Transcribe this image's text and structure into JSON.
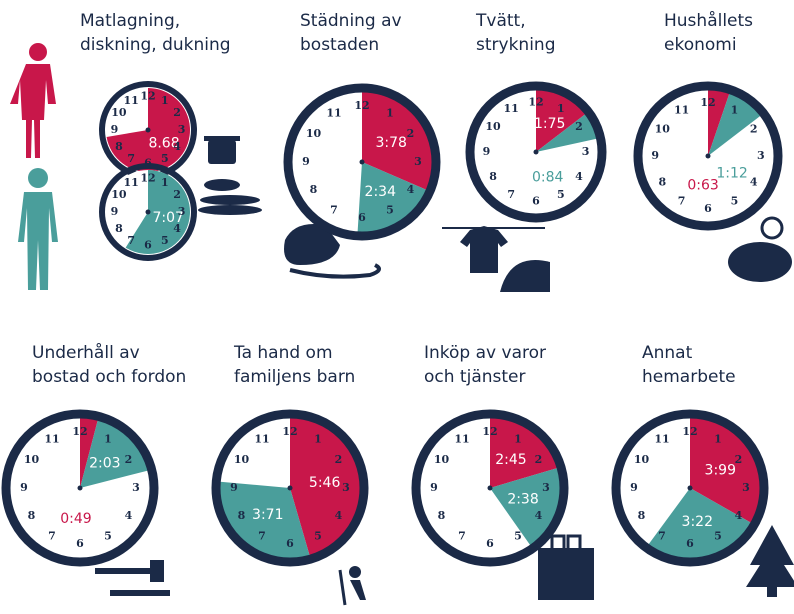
{
  "clock_numbers": [
    "12",
    "1",
    "2",
    "3",
    "4",
    "5",
    "6",
    "7",
    "8",
    "9",
    "10",
    "11"
  ],
  "panels": [
    {
      "title": [
        "Matlagning,",
        "diskning, dukning"
      ],
      "clocks": [
        {
          "segments": [
            {
              "label": "8.68",
              "color": "#c8174a"
            }
          ]
        },
        {
          "segments": [
            {
              "label": "7:07",
              "color": "#4a9e9b"
            }
          ]
        }
      ]
    },
    {
      "title": [
        "Städning av",
        "bostaden"
      ],
      "clocks": [
        {
          "segments": [
            {
              "label": "3:78",
              "color": "#c8174a"
            },
            {
              "label": "2:34",
              "color": "#4a9e9b"
            }
          ]
        }
      ]
    },
    {
      "title": [
        "Tvätt,",
        "strykning"
      ],
      "clocks": [
        {
          "segments": [
            {
              "label": "1:75",
              "color": "#c8174a"
            },
            {
              "label": "0:84",
              "color": "#4a9e9b"
            }
          ]
        }
      ]
    },
    {
      "title": [
        "Hushållets",
        "ekonomi"
      ],
      "clocks": [
        {
          "segments": [
            {
              "label": "0:63",
              "color": "#c8174a"
            },
            {
              "label": "1:12",
              "color": "#4a9e9b"
            }
          ]
        }
      ]
    },
    {
      "title": [
        "Underhåll av",
        "bostad och fordon"
      ],
      "clocks": [
        {
          "segments": [
            {
              "label": "0:49",
              "color": "#c8174a"
            },
            {
              "label": "2:03",
              "color": "#4a9e9b"
            }
          ]
        }
      ]
    },
    {
      "title": [
        "Ta hand om",
        "familjens barn"
      ],
      "clocks": [
        {
          "segments": [
            {
              "label": "5:46",
              "color": "#c8174a"
            },
            {
              "label": "3:71",
              "color": "#4a9e9b"
            }
          ]
        }
      ]
    },
    {
      "title": [
        "Inköp av varor",
        "och tjänster"
      ],
      "clocks": [
        {
          "segments": [
            {
              "label": "2:45",
              "color": "#c8174a"
            },
            {
              "label": "2:38",
              "color": "#4a9e9b"
            }
          ]
        }
      ]
    },
    {
      "title": [
        "Annat",
        "hemarbete"
      ],
      "clocks": [
        {
          "segments": [
            {
              "label": "3:99",
              "color": "#c8174a"
            },
            {
              "label": "3:22",
              "color": "#4a9e9b"
            }
          ]
        }
      ]
    }
  ]
}
